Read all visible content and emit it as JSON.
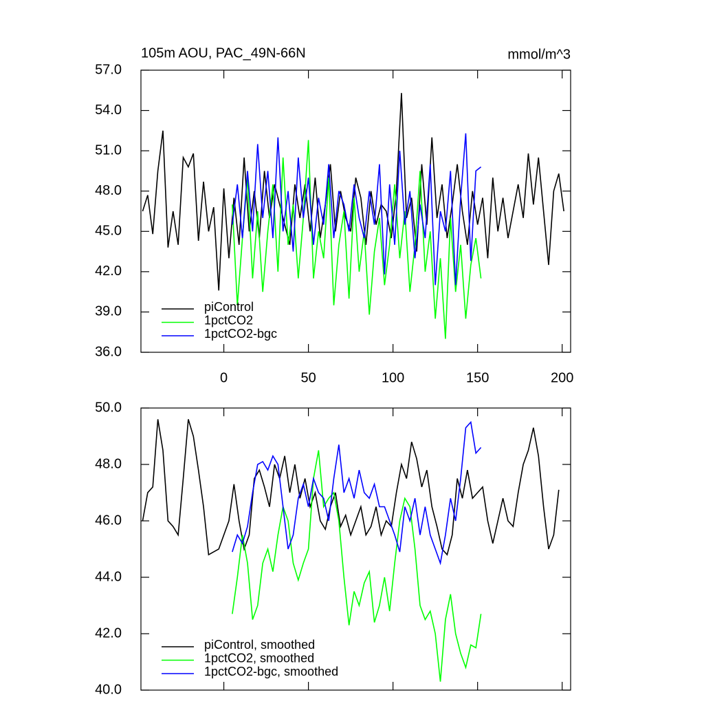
{
  "chart_data": [
    {
      "type": "line",
      "title": "105m AOU, PAC_49N-66N",
      "units": "mmol/m^3",
      "xlim": [
        -49,
        205
      ],
      "xticks": [
        0,
        50,
        100,
        150,
        200
      ],
      "ylim": [
        36,
        57
      ],
      "yticks": [
        {
          "value": 36,
          "label": "36.0"
        },
        {
          "value": 39,
          "label": "39.0"
        },
        {
          "value": 42,
          "label": "42.0"
        },
        {
          "value": 45,
          "label": "45.0"
        },
        {
          "value": 48,
          "label": "48.0"
        },
        {
          "value": 51,
          "label": "51.0"
        },
        {
          "value": 54,
          "label": "54.0"
        },
        {
          "value": 57,
          "label": "57.0"
        }
      ],
      "legend": "lower left",
      "series": [
        {
          "name": "piControl",
          "color": "#000000",
          "x": [
            -48,
            -45,
            -42,
            -39,
            -36,
            -33,
            -30,
            -27,
            -24,
            -21,
            -18,
            -15,
            -12,
            -9,
            -6,
            -3,
            0,
            3,
            6,
            9,
            12,
            15,
            18,
            21,
            24,
            27,
            30,
            33,
            36,
            39,
            42,
            45,
            48,
            51,
            54,
            57,
            60,
            63,
            66,
            69,
            72,
            75,
            78,
            81,
            84,
            87,
            90,
            93,
            96,
            99,
            102,
            105,
            108,
            111,
            114,
            117,
            120,
            123,
            126,
            129,
            132,
            135,
            138,
            141,
            144,
            147,
            150,
            153,
            156,
            159,
            162,
            165,
            168,
            171,
            174,
            177,
            180,
            183,
            186,
            189,
            192,
            195,
            198,
            201
          ],
          "values": [
            46.5,
            47.7,
            44.8,
            49.5,
            52.5,
            43.8,
            46.5,
            44.0,
            50.5,
            49.8,
            50.8,
            44.3,
            48.7,
            45.0,
            46.8,
            40.6,
            48.2,
            43.0,
            47.5,
            44.0,
            50.5,
            45.0,
            48.0,
            44.5,
            49.5,
            46.0,
            48.5,
            47.0,
            45.5,
            44.0,
            48.5,
            46.0,
            48.5,
            45.0,
            49.0,
            44.5,
            47.0,
            50.0,
            45.0,
            48.0,
            46.0,
            45.0,
            49.0,
            47.5,
            44.0,
            48.0,
            45.5,
            47.0,
            46.5,
            44.5,
            48.0,
            55.3,
            46.0,
            47.5,
            43.5,
            50.0,
            45.5,
            52.0,
            46.0,
            48.5,
            44.5,
            47.0,
            50.0,
            46.5,
            44.0,
            48.0,
            45.5,
            47.5,
            43.0,
            49.0,
            45.0,
            47.5,
            44.5,
            46.5,
            48.5,
            46.0,
            50.8,
            47.0,
            50.5,
            46.5,
            42.5,
            48.0,
            49.3,
            46.5
          ]
        },
        {
          "name": "1pctCO2",
          "color": "#00ff00",
          "x": [
            5,
            8,
            11,
            14,
            17,
            20,
            23,
            26,
            29,
            32,
            35,
            38,
            41,
            44,
            47,
            50,
            53,
            56,
            59,
            62,
            65,
            68,
            71,
            74,
            77,
            80,
            83,
            86,
            89,
            92,
            95,
            98,
            101,
            104,
            107,
            110,
            113,
            116,
            119,
            122,
            125,
            128,
            131,
            134,
            137,
            140,
            143,
            146,
            149,
            152
          ],
          "values": [
            47.0,
            39.5,
            44.5,
            49.0,
            41.5,
            46.5,
            40.5,
            45.0,
            48.5,
            42.0,
            50.5,
            44.0,
            47.0,
            41.5,
            46.0,
            51.8,
            41.5,
            45.0,
            43.0,
            49.0,
            39.5,
            44.0,
            46.5,
            40.0,
            47.5,
            42.0,
            45.0,
            38.8,
            43.5,
            46.0,
            41.0,
            44.0,
            48.5,
            43.0,
            46.5,
            40.5,
            44.0,
            49.5,
            42.0,
            45.0,
            38.5,
            43.0,
            37.0,
            46.0,
            40.5,
            44.0,
            38.5,
            42.5,
            44.5,
            41.5
          ]
        },
        {
          "name": "1pctCO2-bgc",
          "color": "#0000ff",
          "x": [
            5,
            8,
            11,
            14,
            17,
            20,
            23,
            26,
            29,
            32,
            35,
            38,
            41,
            44,
            47,
            50,
            53,
            56,
            59,
            62,
            65,
            68,
            71,
            74,
            77,
            80,
            83,
            86,
            89,
            92,
            95,
            98,
            101,
            104,
            107,
            110,
            113,
            116,
            119,
            122,
            125,
            128,
            131,
            134,
            137,
            140,
            143,
            146,
            149,
            152
          ],
          "values": [
            45.5,
            48.5,
            44.5,
            49.5,
            45.0,
            51.5,
            46.0,
            49.5,
            44.5,
            52.0,
            45.0,
            48.0,
            43.5,
            50.5,
            46.0,
            49.0,
            44.0,
            47.5,
            45.5,
            50.0,
            44.5,
            48.0,
            47.0,
            45.0,
            48.5,
            46.0,
            44.5,
            48.0,
            45.5,
            50.0,
            41.8,
            48.5,
            44.0,
            51.0,
            45.5,
            48.0,
            43.0,
            47.0,
            44.5,
            50.0,
            41.0,
            46.5,
            45.0,
            49.5,
            41.0,
            47.5,
            52.3,
            42.8,
            49.5,
            49.8
          ]
        }
      ]
    },
    {
      "type": "line",
      "xlim": [
        -49,
        205
      ],
      "xticks": [
        0,
        50,
        100,
        150,
        200
      ],
      "ylim": [
        40,
        50
      ],
      "yticks": [
        {
          "value": 40,
          "label": "40.0"
        },
        {
          "value": 42,
          "label": "42.0"
        },
        {
          "value": 44,
          "label": "44.0"
        },
        {
          "value": 46,
          "label": "46.0"
        },
        {
          "value": 48,
          "label": "48.0"
        },
        {
          "value": 50,
          "label": "50.0"
        }
      ],
      "legend": "lower left",
      "series": [
        {
          "name": "piControl, smoothed",
          "color": "#000000",
          "x": [
            -48,
            -45,
            -42,
            -39,
            -36,
            -33,
            -30,
            -27,
            -24,
            -21,
            -18,
            -15,
            -12,
            -9,
            -6,
            -3,
            0,
            3,
            6,
            9,
            12,
            15,
            18,
            21,
            24,
            27,
            30,
            33,
            36,
            39,
            42,
            45,
            48,
            51,
            54,
            57,
            60,
            63,
            66,
            69,
            72,
            75,
            78,
            81,
            84,
            87,
            90,
            93,
            96,
            99,
            102,
            105,
            108,
            111,
            114,
            117,
            120,
            123,
            126,
            129,
            132,
            135,
            138,
            141,
            144,
            147,
            150,
            153,
            156,
            159,
            162,
            165,
            168,
            171,
            174,
            177,
            180,
            183,
            186,
            189,
            192,
            195,
            198
          ],
          "values": [
            46.0,
            47.0,
            47.2,
            49.6,
            48.5,
            46.0,
            45.8,
            45.5,
            47.5,
            49.6,
            49.0,
            47.8,
            46.5,
            44.8,
            44.9,
            45.0,
            45.5,
            46.0,
            47.3,
            46.0,
            45.0,
            45.5,
            47.5,
            47.8,
            47.2,
            46.5,
            48.0,
            47.5,
            48.3,
            47.0,
            48.0,
            46.8,
            47.5,
            46.5,
            47.0,
            46.0,
            45.7,
            46.5,
            47.0,
            45.8,
            46.2,
            45.5,
            46.0,
            46.5,
            45.5,
            45.8,
            46.5,
            45.5,
            46.0,
            45.8,
            47.0,
            48.0,
            47.5,
            48.8,
            48.2,
            47.2,
            47.8,
            46.5,
            45.8,
            45.0,
            44.8,
            45.5,
            47.5,
            46.8,
            47.8,
            46.8,
            47.0,
            47.2,
            46.0,
            45.2,
            46.0,
            46.8,
            46.0,
            45.8,
            47.0,
            48.0,
            48.5,
            49.3,
            48.3,
            46.5,
            45.0,
            45.5,
            47.1
          ]
        },
        {
          "name": "1pctCO2, smoothed",
          "color": "#00ff00",
          "x": [
            5,
            8,
            11,
            14,
            17,
            20,
            23,
            26,
            29,
            32,
            35,
            38,
            41,
            44,
            47,
            50,
            53,
            56,
            59,
            62,
            65,
            68,
            71,
            74,
            77,
            80,
            83,
            86,
            89,
            92,
            95,
            98,
            101,
            104,
            107,
            110,
            113,
            116,
            119,
            122,
            125,
            128,
            131,
            134,
            137,
            140,
            143,
            146,
            149,
            152
          ],
          "values": [
            42.7,
            44.0,
            45.5,
            44.5,
            42.5,
            43.0,
            44.5,
            45.0,
            44.2,
            45.5,
            46.5,
            46.0,
            44.5,
            43.9,
            44.5,
            45.0,
            47.5,
            48.5,
            46.5,
            46.8,
            47.0,
            46.0,
            44.0,
            42.3,
            43.5,
            43.0,
            43.8,
            44.2,
            42.4,
            43.0,
            44.0,
            42.8,
            44.5,
            46.0,
            46.8,
            46.5,
            45.0,
            43.0,
            42.5,
            42.8,
            42.0,
            40.3,
            42.5,
            43.4,
            42.0,
            41.3,
            40.8,
            41.6,
            41.5,
            42.7
          ]
        },
        {
          "name": "1pctCO2-bgc, smoothed",
          "color": "#0000ff",
          "x": [
            5,
            8,
            11,
            14,
            17,
            20,
            23,
            26,
            29,
            32,
            35,
            38,
            41,
            44,
            47,
            50,
            53,
            56,
            59,
            62,
            65,
            68,
            71,
            74,
            77,
            80,
            83,
            86,
            89,
            92,
            95,
            98,
            101,
            104,
            107,
            110,
            113,
            116,
            119,
            122,
            125,
            128,
            131,
            134,
            137,
            140,
            143,
            146,
            149,
            152
          ],
          "values": [
            44.9,
            45.5,
            45.2,
            45.8,
            47.0,
            48.0,
            48.1,
            47.8,
            48.3,
            48.0,
            46.5,
            45.0,
            45.5,
            46.8,
            47.3,
            46.5,
            47.5,
            47.0,
            46.8,
            46.0,
            47.5,
            48.7,
            47.0,
            47.5,
            46.8,
            47.8,
            47.0,
            46.8,
            47.3,
            46.5,
            46.5,
            46.0,
            45.5,
            44.9,
            46.5,
            46.0,
            46.8,
            45.5,
            46.5,
            45.5,
            45.0,
            44.5,
            45.5,
            46.8,
            46.0,
            47.5,
            49.3,
            49.5,
            48.4,
            48.6
          ]
        }
      ]
    }
  ]
}
